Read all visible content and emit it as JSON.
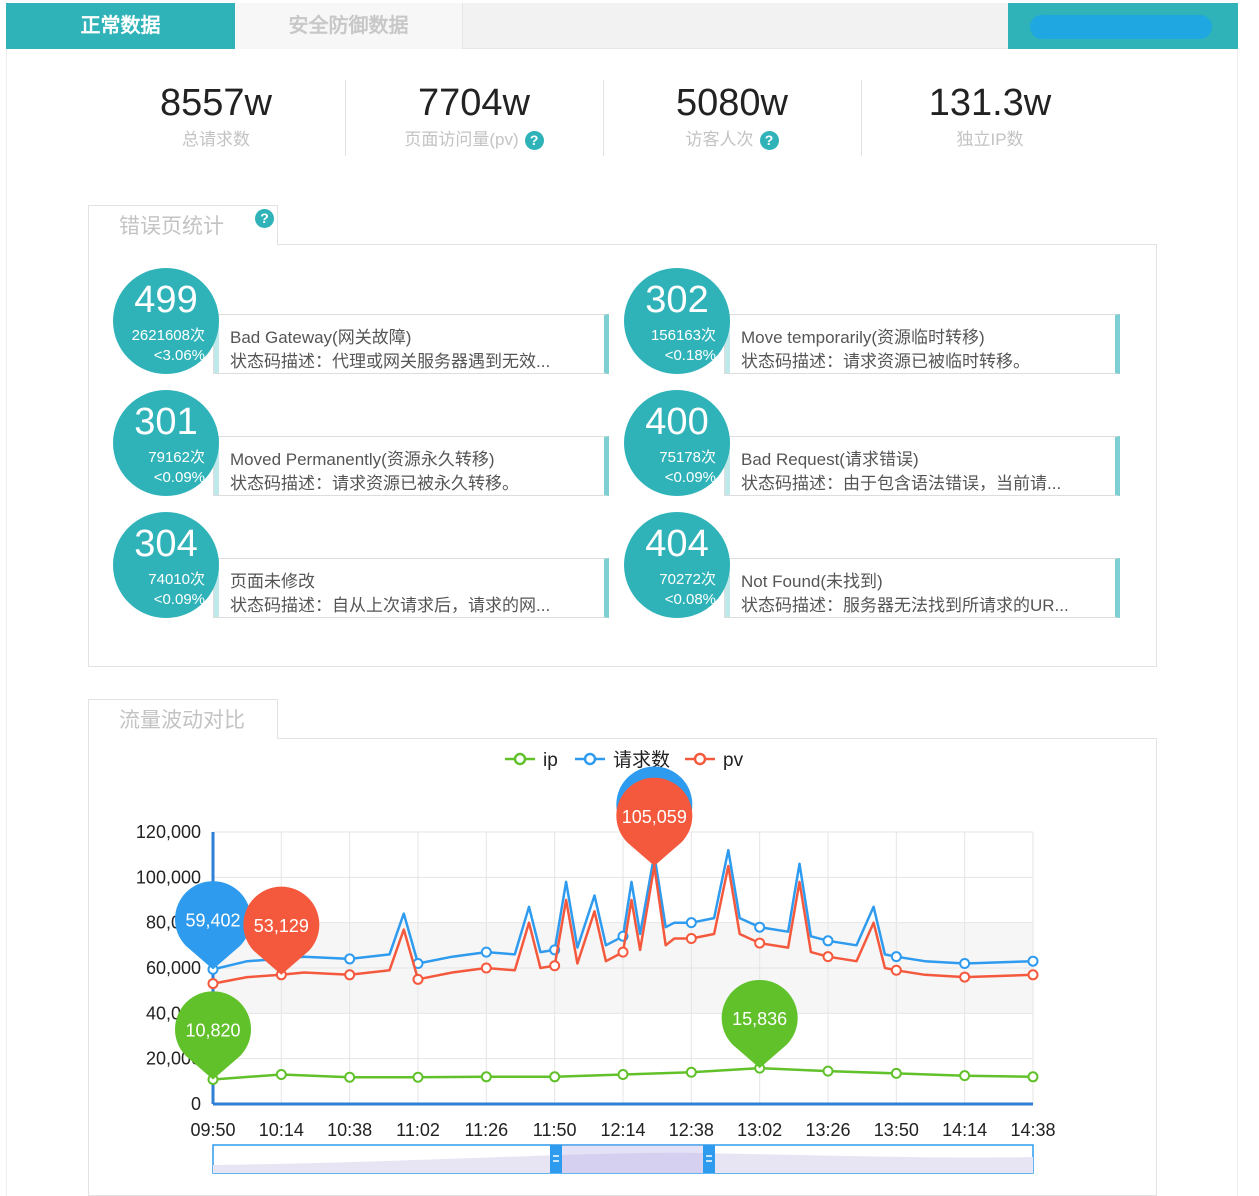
{
  "tabs": [
    {
      "label": "正常数据",
      "active": true
    },
    {
      "label": "安全防御数据",
      "active": false
    }
  ],
  "stats": [
    {
      "value": "8557w",
      "label": "总请求数",
      "help": false
    },
    {
      "value": "7704w",
      "label": "页面访问量(pv)",
      "help": true
    },
    {
      "value": "5080w",
      "label": "访客人次",
      "help": true
    },
    {
      "value": "131.3w",
      "label": "独立IP数",
      "help": false
    }
  ],
  "help_glyph": "?",
  "error_section": {
    "title": "错误页统计",
    "cards": [
      {
        "code": "499",
        "count": "2621608次",
        "pct": "<3.06%",
        "title": "Bad Gateway(网关故障)",
        "desc": "状态码描述：代理或网关服务器遇到无效..."
      },
      {
        "code": "302",
        "count": "156163次",
        "pct": "<0.18%",
        "title": "Move temporarily(资源临时转移)",
        "desc": "状态码描述：请求资源已被临时转移。"
      },
      {
        "code": "301",
        "count": "79162次",
        "pct": "<0.09%",
        "title": "Moved Permanently(资源永久转移)",
        "desc": "状态码描述：请求资源已被永久转移。"
      },
      {
        "code": "400",
        "count": "75178次",
        "pct": "<0.09%",
        "title": "Bad Request(请求错误)",
        "desc": "状态码描述：由于包含语法错误，当前请..."
      },
      {
        "code": "304",
        "count": "74010次",
        "pct": "<0.09%",
        "title": "页面未修改",
        "desc": "状态码描述：自从上次请求后，请求的网..."
      },
      {
        "code": "404",
        "count": "70272次",
        "pct": "<0.08%",
        "title": "Not Found(未找到)",
        "desc": "状态码描述：服务器无法找到所请求的UR..."
      }
    ]
  },
  "traffic_section": {
    "title": "流量波动对比"
  },
  "colors": {
    "accent": "#2fb3b9",
    "ip": "#61c12a",
    "requests": "#2f9bef",
    "pv": "#f5593d"
  },
  "chart_data": {
    "type": "line",
    "title": "",
    "xlabel": "",
    "ylabel": "",
    "legend": [
      "ip",
      "请求数",
      "pv"
    ],
    "legend_position": "top-center",
    "x_ticks": [
      "09:50",
      "10:14",
      "10:38",
      "11:02",
      "11:26",
      "11:50",
      "12:14",
      "12:38",
      "13:02",
      "13:26",
      "13:50",
      "14:14",
      "14:38"
    ],
    "y_ticks": [
      "0",
      "20,000",
      "40,000",
      "60,000",
      "80,000",
      "100,000",
      "120,000"
    ],
    "ylim": [
      0,
      120000
    ],
    "x_range_minutes": [
      590,
      878
    ],
    "grid": true,
    "series": [
      {
        "name": "ip",
        "points": [
          [
            590,
            10820
          ],
          [
            614,
            13000
          ],
          [
            638,
            11800
          ],
          [
            662,
            11800
          ],
          [
            686,
            12000
          ],
          [
            710,
            12000
          ],
          [
            734,
            13000
          ],
          [
            758,
            14000
          ],
          [
            782,
            15836
          ],
          [
            806,
            14500
          ],
          [
            830,
            13500
          ],
          [
            854,
            12500
          ],
          [
            878,
            12000
          ]
        ]
      },
      {
        "name": "请求数",
        "points": [
          [
            590,
            59402
          ],
          [
            602,
            63000
          ],
          [
            614,
            64000
          ],
          [
            622,
            65000
          ],
          [
            638,
            64000
          ],
          [
            652,
            66000
          ],
          [
            657,
            84000
          ],
          [
            662,
            62000
          ],
          [
            674,
            65000
          ],
          [
            686,
            67000
          ],
          [
            696,
            66000
          ],
          [
            701,
            87000
          ],
          [
            705,
            67000
          ],
          [
            710,
            68000
          ],
          [
            714,
            98000
          ],
          [
            718,
            69000
          ],
          [
            724,
            92000
          ],
          [
            728,
            70000
          ],
          [
            734,
            74000
          ],
          [
            737,
            98000
          ],
          [
            740,
            75000
          ],
          [
            745,
            110000
          ],
          [
            749,
            78000
          ],
          [
            752,
            80000
          ],
          [
            758,
            80000
          ],
          [
            766,
            82000
          ],
          [
            771,
            112000
          ],
          [
            775,
            82000
          ],
          [
            782,
            78000
          ],
          [
            792,
            76000
          ],
          [
            796,
            106000
          ],
          [
            800,
            74000
          ],
          [
            806,
            72000
          ],
          [
            816,
            70000
          ],
          [
            822,
            87000
          ],
          [
            826,
            66000
          ],
          [
            830,
            65000
          ],
          [
            840,
            63000
          ],
          [
            854,
            62000
          ],
          [
            878,
            63000
          ]
        ]
      },
      {
        "name": "pv",
        "points": [
          [
            590,
            53129
          ],
          [
            602,
            56000
          ],
          [
            614,
            57000
          ],
          [
            622,
            58000
          ],
          [
            638,
            57000
          ],
          [
            652,
            59000
          ],
          [
            657,
            77000
          ],
          [
            662,
            55000
          ],
          [
            674,
            58000
          ],
          [
            686,
            60000
          ],
          [
            696,
            59000
          ],
          [
            701,
            80000
          ],
          [
            705,
            60000
          ],
          [
            710,
            61000
          ],
          [
            714,
            90000
          ],
          [
            718,
            62000
          ],
          [
            724,
            85000
          ],
          [
            728,
            63000
          ],
          [
            734,
            67000
          ],
          [
            737,
            90000
          ],
          [
            740,
            68000
          ],
          [
            745,
            105059
          ],
          [
            749,
            70000
          ],
          [
            752,
            73000
          ],
          [
            758,
            73000
          ],
          [
            766,
            75000
          ],
          [
            771,
            105000
          ],
          [
            775,
            75000
          ],
          [
            782,
            71000
          ],
          [
            792,
            69000
          ],
          [
            796,
            98000
          ],
          [
            800,
            67000
          ],
          [
            806,
            65000
          ],
          [
            816,
            63000
          ],
          [
            822,
            80000
          ],
          [
            826,
            60000
          ],
          [
            830,
            59000
          ],
          [
            840,
            57000
          ],
          [
            854,
            56000
          ],
          [
            878,
            57000
          ]
        ]
      }
    ],
    "markers": [
      {
        "series": "请求数",
        "label": "59,402",
        "x": 590,
        "y": 59402
      },
      {
        "series": "pv",
        "label": "53,129",
        "x": 614,
        "y": 57000
      },
      {
        "series": "请求数",
        "label": "",
        "x": 745,
        "y": 110000
      },
      {
        "series": "pv",
        "label": "105,059",
        "x": 745,
        "y": 105059
      },
      {
        "series": "ip",
        "label": "10,820",
        "x": 590,
        "y": 10820
      },
      {
        "series": "ip",
        "label": "15,836",
        "x": 782,
        "y": 15836
      }
    ]
  }
}
